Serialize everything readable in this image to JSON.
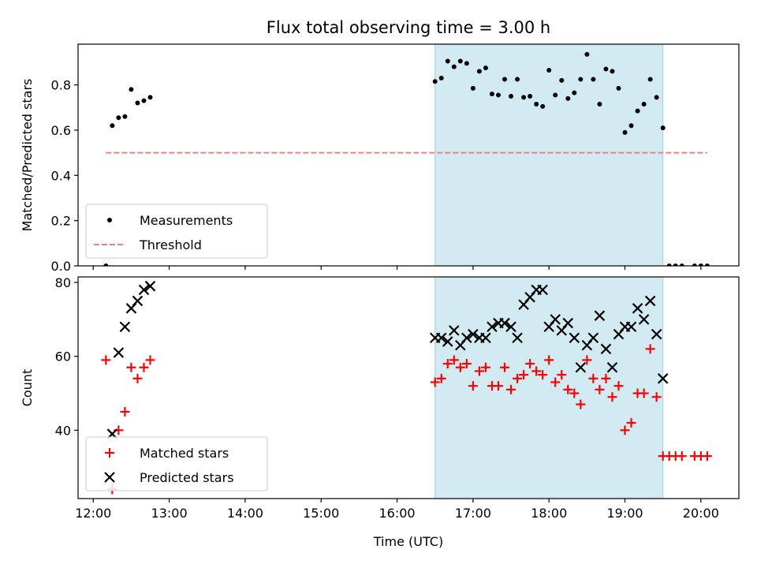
{
  "chart_data": [
    {
      "type": "scatter",
      "title": "Flux total observing time = 3.00 h",
      "xlabel": "",
      "ylabel": "Matched/Predicted stars",
      "xlim": [
        "11:48",
        "20:30"
      ],
      "ylim": [
        0,
        0.98
      ],
      "yticks": [
        0.0,
        0.2,
        0.4,
        0.6,
        0.8
      ],
      "ytick_labels": [
        "0.0",
        "0.2",
        "0.4",
        "0.6",
        "0.8"
      ],
      "xticks": [
        "12:00",
        "13:00",
        "14:00",
        "15:00",
        "16:00",
        "17:00",
        "18:00",
        "19:00",
        "20:00"
      ],
      "shaded_interval": {
        "start": "16:30",
        "end": "19:30",
        "color": "#add8e6"
      },
      "legend": {
        "placement": "lower-left"
      },
      "series": [
        {
          "name": "Measurements",
          "style": "dots",
          "color": "#000000",
          "points": [
            [
              "12:10",
              0.0
            ],
            [
              "12:15",
              0.62
            ],
            [
              "12:20",
              0.655
            ],
            [
              "12:25",
              0.66
            ],
            [
              "12:30",
              0.78
            ],
            [
              "12:35",
              0.72
            ],
            [
              "12:40",
              0.73
            ],
            [
              "12:45",
              0.745
            ],
            [
              "16:30",
              0.815
            ],
            [
              "16:35",
              0.83
            ],
            [
              "16:40",
              0.905
            ],
            [
              "16:45",
              0.88
            ],
            [
              "16:50",
              0.905
            ],
            [
              "16:55",
              0.895
            ],
            [
              "17:00",
              0.785
            ],
            [
              "17:05",
              0.86
            ],
            [
              "17:10",
              0.875
            ],
            [
              "17:15",
              0.76
            ],
            [
              "17:20",
              0.755
            ],
            [
              "17:25",
              0.825
            ],
            [
              "17:30",
              0.75
            ],
            [
              "17:35",
              0.825
            ],
            [
              "17:40",
              0.745
            ],
            [
              "17:45",
              0.75
            ],
            [
              "17:50",
              0.715
            ],
            [
              "17:55",
              0.705
            ],
            [
              "18:00",
              0.865
            ],
            [
              "18:05",
              0.755
            ],
            [
              "18:10",
              0.82
            ],
            [
              "18:15",
              0.74
            ],
            [
              "18:20",
              0.765
            ],
            [
              "18:25",
              0.825
            ],
            [
              "18:30",
              0.935
            ],
            [
              "18:35",
              0.825
            ],
            [
              "18:40",
              0.715
            ],
            [
              "18:45",
              0.87
            ],
            [
              "18:50",
              0.86
            ],
            [
              "18:55",
              0.785
            ],
            [
              "19:00",
              0.59
            ],
            [
              "19:05",
              0.62
            ],
            [
              "19:10",
              0.685
            ],
            [
              "19:15",
              0.715
            ],
            [
              "19:20",
              0.825
            ],
            [
              "19:25",
              0.745
            ],
            [
              "19:30",
              0.61
            ],
            [
              "19:35",
              0.0
            ],
            [
              "19:40",
              0.0
            ],
            [
              "19:45",
              0.0
            ],
            [
              "19:55",
              0.0
            ],
            [
              "20:00",
              0.0
            ],
            [
              "20:05",
              0.0
            ]
          ]
        },
        {
          "name": "Threshold",
          "style": "dashed-line",
          "color": "#f08080",
          "points": [
            [
              "12:10",
              0.5
            ],
            [
              "20:05",
              0.5
            ]
          ]
        }
      ]
    },
    {
      "type": "scatter",
      "title": "",
      "xlabel": "Time (UTC)",
      "ylabel": "Count",
      "xlim": [
        "11:48",
        "20:30"
      ],
      "ylim": [
        21.5,
        81.5
      ],
      "yticks": [
        40,
        60,
        80
      ],
      "ytick_labels": [
        "40",
        "60",
        "80"
      ],
      "xticks": [
        "12:00",
        "13:00",
        "14:00",
        "15:00",
        "16:00",
        "17:00",
        "18:00",
        "19:00",
        "20:00"
      ],
      "xtick_labels": [
        "12:00",
        "13:00",
        "14:00",
        "15:00",
        "16:00",
        "17:00",
        "18:00",
        "19:00",
        "20:00"
      ],
      "shaded_interval": {
        "start": "16:30",
        "end": "19:30",
        "color": "#add8e6"
      },
      "legend": {
        "placement": "lower-left"
      },
      "series": [
        {
          "name": "Matched stars",
          "marker": "plus",
          "color": "#ff0000",
          "points": [
            [
              "12:10",
              59
            ],
            [
              "12:15",
              24
            ],
            [
              "12:20",
              40
            ],
            [
              "12:25",
              45
            ],
            [
              "12:30",
              57
            ],
            [
              "12:35",
              54
            ],
            [
              "12:40",
              57
            ],
            [
              "12:45",
              59
            ],
            [
              "16:30",
              53
            ],
            [
              "16:35",
              54
            ],
            [
              "16:40",
              58
            ],
            [
              "16:45",
              59
            ],
            [
              "16:50",
              57
            ],
            [
              "16:55",
              58
            ],
            [
              "17:00",
              52
            ],
            [
              "17:05",
              56
            ],
            [
              "17:10",
              57
            ],
            [
              "17:15",
              52
            ],
            [
              "17:20",
              52
            ],
            [
              "17:25",
              57
            ],
            [
              "17:30",
              51
            ],
            [
              "17:35",
              54
            ],
            [
              "17:40",
              55
            ],
            [
              "17:45",
              58
            ],
            [
              "17:50",
              56
            ],
            [
              "17:55",
              55
            ],
            [
              "18:00",
              59
            ],
            [
              "18:05",
              53
            ],
            [
              "18:10",
              55
            ],
            [
              "18:15",
              51
            ],
            [
              "18:20",
              50
            ],
            [
              "18:25",
              47
            ],
            [
              "18:30",
              59
            ],
            [
              "18:35",
              54
            ],
            [
              "18:40",
              51
            ],
            [
              "18:45",
              54
            ],
            [
              "18:50",
              49
            ],
            [
              "18:55",
              52
            ],
            [
              "19:00",
              40
            ],
            [
              "19:05",
              42
            ],
            [
              "19:10",
              50
            ],
            [
              "19:15",
              50
            ],
            [
              "19:20",
              62
            ],
            [
              "19:25",
              49
            ],
            [
              "19:30",
              33
            ],
            [
              "19:35",
              33
            ],
            [
              "19:40",
              33
            ],
            [
              "19:45",
              33
            ],
            [
              "19:55",
              33
            ],
            [
              "20:00",
              33
            ],
            [
              "20:05",
              33
            ]
          ]
        },
        {
          "name": "Predicted stars",
          "marker": "x",
          "color": "#000000",
          "points": [
            [
              "12:15",
              39
            ],
            [
              "12:20",
              61
            ],
            [
              "12:25",
              68
            ],
            [
              "12:30",
              73
            ],
            [
              "12:35",
              75
            ],
            [
              "12:40",
              78
            ],
            [
              "12:45",
              79
            ],
            [
              "16:30",
              65
            ],
            [
              "16:35",
              65
            ],
            [
              "16:40",
              64
            ],
            [
              "16:45",
              67
            ],
            [
              "16:50",
              63
            ],
            [
              "16:55",
              65
            ],
            [
              "17:00",
              66
            ],
            [
              "17:05",
              65
            ],
            [
              "17:10",
              65
            ],
            [
              "17:15",
              68
            ],
            [
              "17:20",
              69
            ],
            [
              "17:25",
              69
            ],
            [
              "17:30",
              68
            ],
            [
              "17:35",
              65
            ],
            [
              "17:40",
              74
            ],
            [
              "17:45",
              76
            ],
            [
              "17:50",
              78
            ],
            [
              "17:55",
              78
            ],
            [
              "18:00",
              68
            ],
            [
              "18:05",
              70
            ],
            [
              "18:10",
              67
            ],
            [
              "18:15",
              69
            ],
            [
              "18:20",
              65
            ],
            [
              "18:25",
              57
            ],
            [
              "18:30",
              63
            ],
            [
              "18:35",
              65
            ],
            [
              "18:40",
              71
            ],
            [
              "18:45",
              62
            ],
            [
              "18:50",
              57
            ],
            [
              "18:55",
              66
            ],
            [
              "19:00",
              68
            ],
            [
              "19:05",
              68
            ],
            [
              "19:10",
              73
            ],
            [
              "19:15",
              70
            ],
            [
              "19:20",
              75
            ],
            [
              "19:25",
              66
            ],
            [
              "19:30",
              54
            ]
          ]
        }
      ]
    }
  ]
}
